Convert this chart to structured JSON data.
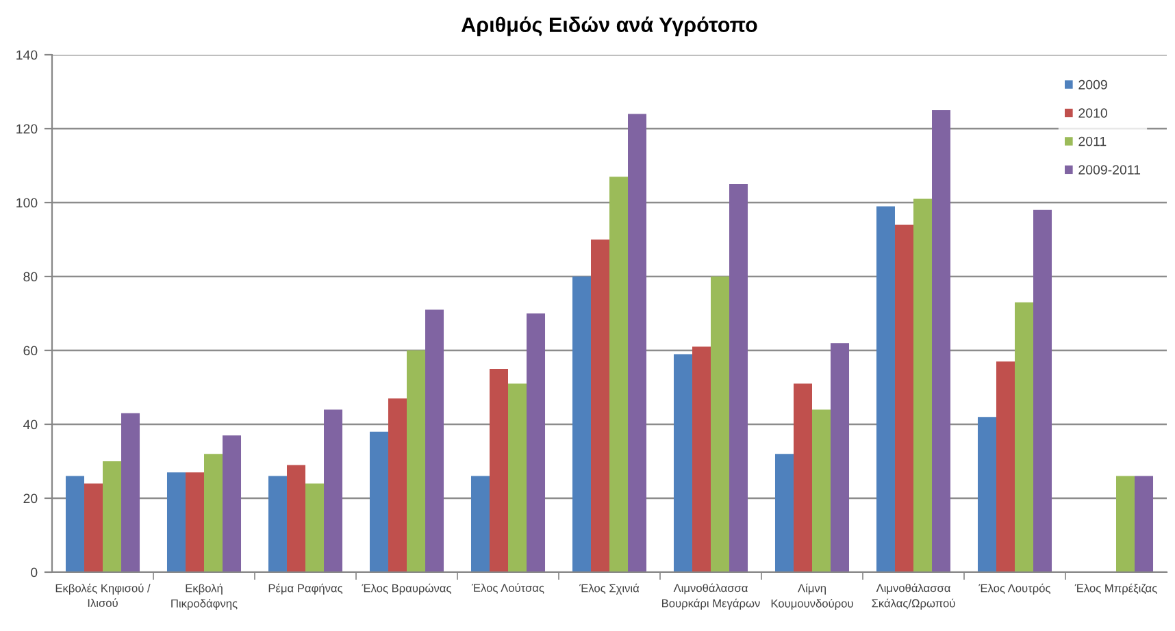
{
  "chart_data": {
    "type": "bar",
    "title": "Αριθμός Ειδών ανά Υγρότοπο",
    "categories": [
      "Εκβολές Κηφισού /\nΙλισού",
      "Εκβολή\nΠικροδάφνης",
      "Ρέμα Ραφήνας",
      "Έλος Βραυρώνας",
      "Έλος Λούτσας",
      "Έλος Σχινιά",
      "Λιμνοθάλασσα\nΒουρκάρι Μεγάρων",
      "Λίμνη\nΚουμουνδούρου",
      "Λιμνοθάλασσα\nΣκάλας/Ωρωπού",
      "Έλος Λουτρός",
      "Έλος Μπρέξιζας"
    ],
    "series": [
      {
        "name": "2009",
        "color": "#4f81bd",
        "values": [
          26,
          27,
          26,
          38,
          26,
          80,
          59,
          32,
          99,
          42,
          null
        ]
      },
      {
        "name": "2010",
        "color": "#c0504d",
        "values": [
          24,
          27,
          29,
          47,
          55,
          90,
          61,
          51,
          94,
          57,
          null
        ]
      },
      {
        "name": "2011",
        "color": "#9bbb59",
        "values": [
          30,
          32,
          24,
          60,
          51,
          107,
          80,
          44,
          101,
          73,
          26
        ]
      },
      {
        "name": "2009-2011",
        "color": "#8064a2",
        "values": [
          43,
          37,
          44,
          71,
          70,
          124,
          105,
          62,
          125,
          98,
          26
        ]
      }
    ],
    "ylim": [
      0,
      140
    ],
    "yticks": [
      0,
      20,
      40,
      60,
      80,
      100,
      120,
      140
    ],
    "grid": "y",
    "legend": "top right"
  }
}
